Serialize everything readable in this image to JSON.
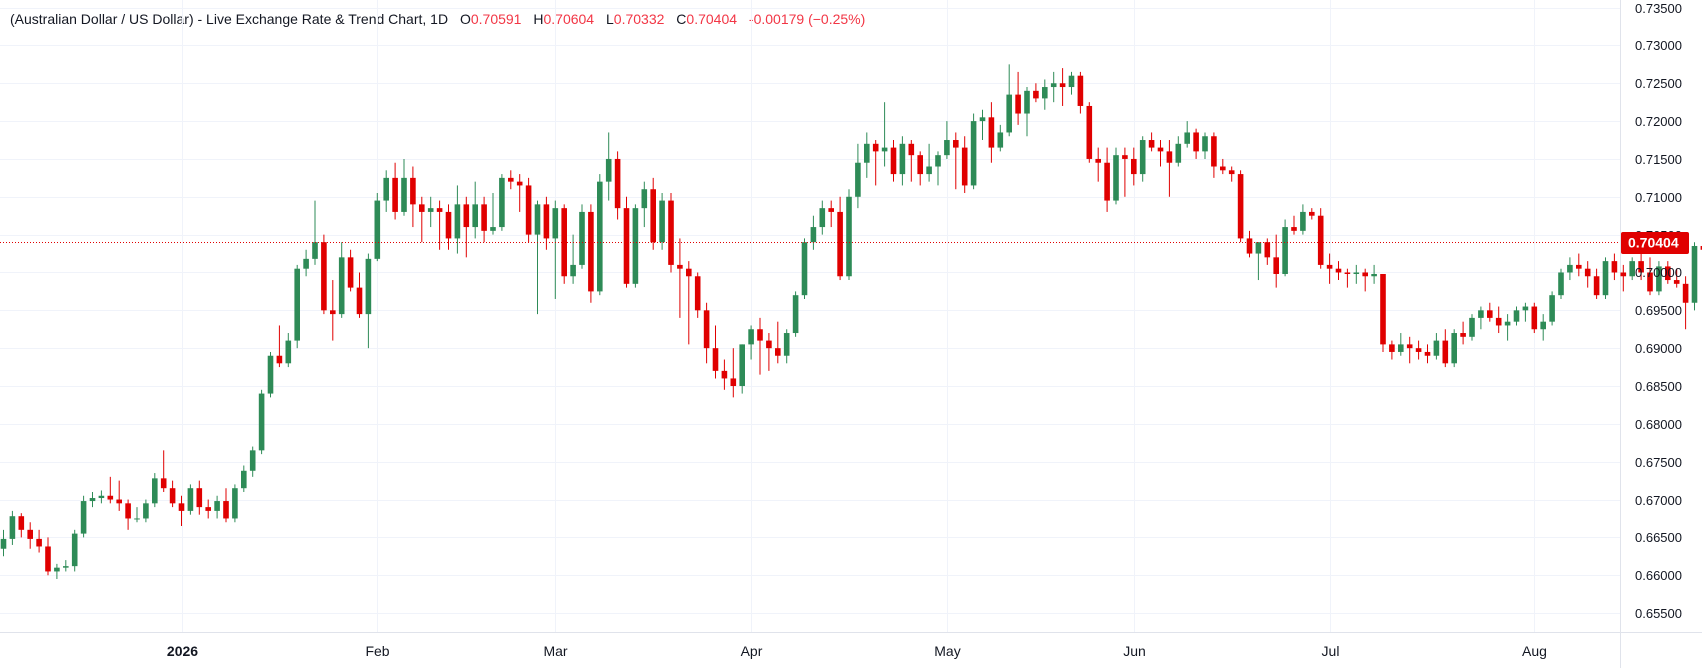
{
  "legend": {
    "symbol": "(Australian Dollar / US Dollar) - Live Exchange Rate & Trend Chart, 1D",
    "o_label": "O",
    "o_value": "0.70591",
    "h_label": "H",
    "h_value": "0.70604",
    "l_label": "L",
    "l_value": "0.70332",
    "c_label": "C",
    "c_value": "0.70404",
    "change": "-0.00179 (−0.25%)"
  },
  "colors": {
    "up": "#2e8b57",
    "down": "#e00000",
    "grid": "#f0f3fa",
    "last_line": "#e00000"
  },
  "chart_data": {
    "type": "candlestick",
    "ylim": [
      0.6525,
      0.736
    ],
    "yticks": [
      0.735,
      0.73,
      0.725,
      0.72,
      0.715,
      0.71,
      0.705,
      0.7,
      0.695,
      0.69,
      0.685,
      0.68,
      0.675,
      0.67,
      0.665,
      0.66,
      0.655
    ],
    "ytick_labels": [
      "0.73500",
      "0.73000",
      "0.72500",
      "0.72000",
      "0.71500",
      "0.71000",
      "0.70500",
      "0.70000",
      "0.69500",
      "0.69000",
      "0.68500",
      "0.68000",
      "0.67500",
      "0.67000",
      "0.66500",
      "0.66000",
      "0.65500"
    ],
    "xticks": [
      {
        "label": "2026",
        "index": 20,
        "bold": true
      },
      {
        "label": "Feb",
        "index": 42
      },
      {
        "label": "Mar",
        "index": 62
      },
      {
        "label": "Apr",
        "index": 84
      },
      {
        "label": "May",
        "index": 106
      },
      {
        "label": "Jun",
        "index": 127
      },
      {
        "label": "Jul",
        "index": 149
      },
      {
        "label": "Aug",
        "index": 172
      }
    ],
    "last_price": 0.70404,
    "last_price_label": "0.70404",
    "candles": [
      [
        0.6635,
        0.666,
        0.6625,
        0.6648
      ],
      [
        0.6648,
        0.6685,
        0.664,
        0.6678
      ],
      [
        0.6678,
        0.6682,
        0.665,
        0.666
      ],
      [
        0.666,
        0.667,
        0.6635,
        0.6648
      ],
      [
        0.6648,
        0.666,
        0.663,
        0.6638
      ],
      [
        0.6638,
        0.665,
        0.66,
        0.6605
      ],
      [
        0.6605,
        0.6615,
        0.6595,
        0.661
      ],
      [
        0.661,
        0.662,
        0.6605,
        0.6612
      ],
      [
        0.6612,
        0.666,
        0.6605,
        0.6655
      ],
      [
        0.6655,
        0.6705,
        0.665,
        0.6698
      ],
      [
        0.6698,
        0.671,
        0.669,
        0.6702
      ],
      [
        0.6702,
        0.6712,
        0.6695,
        0.6705
      ],
      [
        0.6705,
        0.673,
        0.6695,
        0.67
      ],
      [
        0.67,
        0.6725,
        0.6685,
        0.6695
      ],
      [
        0.6695,
        0.67,
        0.666,
        0.6675
      ],
      [
        0.6675,
        0.669,
        0.667,
        0.6675
      ],
      [
        0.6675,
        0.67,
        0.667,
        0.6695
      ],
      [
        0.6695,
        0.6735,
        0.669,
        0.6728
      ],
      [
        0.6728,
        0.6765,
        0.671,
        0.6715
      ],
      [
        0.6715,
        0.6725,
        0.669,
        0.6695
      ],
      [
        0.6695,
        0.6705,
        0.6665,
        0.6685
      ],
      [
        0.6685,
        0.672,
        0.668,
        0.6715
      ],
      [
        0.6715,
        0.6725,
        0.668,
        0.669
      ],
      [
        0.669,
        0.67,
        0.6675,
        0.6685
      ],
      [
        0.6685,
        0.6705,
        0.6675,
        0.6698
      ],
      [
        0.6698,
        0.6715,
        0.667,
        0.6675
      ],
      [
        0.6675,
        0.672,
        0.667,
        0.6715
      ],
      [
        0.6715,
        0.6745,
        0.671,
        0.6738
      ],
      [
        0.6738,
        0.677,
        0.673,
        0.6765
      ],
      [
        0.6765,
        0.6845,
        0.676,
        0.684
      ],
      [
        0.684,
        0.6895,
        0.6835,
        0.689
      ],
      [
        0.689,
        0.693,
        0.6875,
        0.688
      ],
      [
        0.688,
        0.692,
        0.6875,
        0.691
      ],
      [
        0.691,
        0.701,
        0.69,
        0.7005
      ],
      [
        0.7005,
        0.703,
        0.6995,
        0.7018
      ],
      [
        0.7018,
        0.7095,
        0.701,
        0.704
      ],
      [
        0.704,
        0.705,
        0.6945,
        0.695
      ],
      [
        0.695,
        0.699,
        0.691,
        0.6945
      ],
      [
        0.6945,
        0.704,
        0.694,
        0.702
      ],
      [
        0.702,
        0.703,
        0.6975,
        0.698
      ],
      [
        0.698,
        0.7,
        0.694,
        0.6945
      ],
      [
        0.6945,
        0.7025,
        0.69,
        0.7018
      ],
      [
        0.7018,
        0.7105,
        0.7015,
        0.7095
      ],
      [
        0.7095,
        0.7135,
        0.708,
        0.7125
      ],
      [
        0.7125,
        0.7145,
        0.707,
        0.708
      ],
      [
        0.708,
        0.715,
        0.7075,
        0.7125
      ],
      [
        0.7125,
        0.714,
        0.706,
        0.709
      ],
      [
        0.709,
        0.71,
        0.704,
        0.708
      ],
      [
        0.708,
        0.71,
        0.706,
        0.7085
      ],
      [
        0.7085,
        0.7095,
        0.703,
        0.708
      ],
      [
        0.708,
        0.709,
        0.703,
        0.7045
      ],
      [
        0.7045,
        0.7115,
        0.7025,
        0.709
      ],
      [
        0.709,
        0.71,
        0.702,
        0.706
      ],
      [
        0.706,
        0.712,
        0.7045,
        0.709
      ],
      [
        0.709,
        0.71,
        0.704,
        0.7055
      ],
      [
        0.7055,
        0.7105,
        0.705,
        0.706
      ],
      [
        0.706,
        0.713,
        0.7055,
        0.7125
      ],
      [
        0.7125,
        0.7135,
        0.711,
        0.712
      ],
      [
        0.712,
        0.713,
        0.708,
        0.7115
      ],
      [
        0.7115,
        0.7125,
        0.704,
        0.705
      ],
      [
        0.705,
        0.7095,
        0.6945,
        0.709
      ],
      [
        0.709,
        0.71,
        0.703,
        0.7045
      ],
      [
        0.7045,
        0.7095,
        0.6965,
        0.7085
      ],
      [
        0.7085,
        0.709,
        0.6985,
        0.6995
      ],
      [
        0.6995,
        0.705,
        0.6985,
        0.701
      ],
      [
        0.701,
        0.709,
        0.7005,
        0.708
      ],
      [
        0.708,
        0.709,
        0.696,
        0.6975
      ],
      [
        0.6975,
        0.713,
        0.697,
        0.712
      ],
      [
        0.712,
        0.7185,
        0.7095,
        0.715
      ],
      [
        0.715,
        0.716,
        0.707,
        0.7085
      ],
      [
        0.7085,
        0.71,
        0.698,
        0.6985
      ],
      [
        0.6985,
        0.709,
        0.698,
        0.7085
      ],
      [
        0.7085,
        0.712,
        0.706,
        0.711
      ],
      [
        0.711,
        0.7125,
        0.703,
        0.704
      ],
      [
        0.704,
        0.7105,
        0.703,
        0.7095
      ],
      [
        0.7095,
        0.7105,
        0.7,
        0.701
      ],
      [
        0.701,
        0.7045,
        0.694,
        0.7005
      ],
      [
        0.7005,
        0.7015,
        0.6905,
        0.6995
      ],
      [
        0.6995,
        0.7,
        0.694,
        0.695
      ],
      [
        0.695,
        0.696,
        0.688,
        0.69
      ],
      [
        0.69,
        0.693,
        0.686,
        0.687
      ],
      [
        0.687,
        0.6885,
        0.6845,
        0.686
      ],
      [
        0.686,
        0.69,
        0.6835,
        0.685
      ],
      [
        0.685,
        0.6905,
        0.684,
        0.6905
      ],
      [
        0.6905,
        0.693,
        0.6885,
        0.6925
      ],
      [
        0.6925,
        0.694,
        0.6865,
        0.691
      ],
      [
        0.691,
        0.692,
        0.687,
        0.69
      ],
      [
        0.69,
        0.6935,
        0.688,
        0.689
      ],
      [
        0.689,
        0.6925,
        0.688,
        0.692
      ],
      [
        0.692,
        0.6975,
        0.6915,
        0.697
      ],
      [
        0.697,
        0.7045,
        0.6965,
        0.704
      ],
      [
        0.704,
        0.7075,
        0.703,
        0.706
      ],
      [
        0.706,
        0.7095,
        0.705,
        0.7085
      ],
      [
        0.7085,
        0.7095,
        0.706,
        0.708
      ],
      [
        0.708,
        0.71,
        0.699,
        0.6995
      ],
      [
        0.6995,
        0.711,
        0.699,
        0.71
      ],
      [
        0.71,
        0.717,
        0.7085,
        0.7145
      ],
      [
        0.7145,
        0.7185,
        0.7125,
        0.717
      ],
      [
        0.717,
        0.7175,
        0.7115,
        0.716
      ],
      [
        0.716,
        0.7225,
        0.714,
        0.7165
      ],
      [
        0.7165,
        0.7175,
        0.712,
        0.713
      ],
      [
        0.713,
        0.718,
        0.7115,
        0.717
      ],
      [
        0.717,
        0.7175,
        0.712,
        0.7155
      ],
      [
        0.7155,
        0.716,
        0.7115,
        0.713
      ],
      [
        0.713,
        0.717,
        0.712,
        0.714
      ],
      [
        0.714,
        0.716,
        0.7115,
        0.7155
      ],
      [
        0.7155,
        0.72,
        0.715,
        0.7175
      ],
      [
        0.7175,
        0.7185,
        0.711,
        0.7165
      ],
      [
        0.7165,
        0.718,
        0.7105,
        0.7115
      ],
      [
        0.7115,
        0.721,
        0.711,
        0.72
      ],
      [
        0.72,
        0.7215,
        0.7175,
        0.7205
      ],
      [
        0.7205,
        0.7225,
        0.7145,
        0.7165
      ],
      [
        0.7165,
        0.7195,
        0.716,
        0.7185
      ],
      [
        0.7185,
        0.7275,
        0.718,
        0.7235
      ],
      [
        0.7235,
        0.7265,
        0.7195,
        0.721
      ],
      [
        0.721,
        0.7245,
        0.718,
        0.724
      ],
      [
        0.724,
        0.725,
        0.7225,
        0.723
      ],
      [
        0.723,
        0.7255,
        0.7215,
        0.7245
      ],
      [
        0.7245,
        0.7265,
        0.7225,
        0.725
      ],
      [
        0.725,
        0.727,
        0.722,
        0.7245
      ],
      [
        0.7245,
        0.7265,
        0.7235,
        0.726
      ],
      [
        0.726,
        0.7265,
        0.721,
        0.722
      ],
      [
        0.722,
        0.7225,
        0.7145,
        0.715
      ],
      [
        0.715,
        0.7165,
        0.712,
        0.7145
      ],
      [
        0.7145,
        0.7165,
        0.708,
        0.7095
      ],
      [
        0.7095,
        0.7165,
        0.709,
        0.7155
      ],
      [
        0.7155,
        0.7165,
        0.71,
        0.715
      ],
      [
        0.715,
        0.7165,
        0.7115,
        0.713
      ],
      [
        0.713,
        0.718,
        0.712,
        0.7175
      ],
      [
        0.7175,
        0.7185,
        0.716,
        0.7165
      ],
      [
        0.7165,
        0.7175,
        0.714,
        0.716
      ],
      [
        0.716,
        0.7175,
        0.71,
        0.7145
      ],
      [
        0.7145,
        0.718,
        0.714,
        0.717
      ],
      [
        0.717,
        0.72,
        0.7165,
        0.7185
      ],
      [
        0.7185,
        0.719,
        0.715,
        0.716
      ],
      [
        0.716,
        0.7185,
        0.715,
        0.718
      ],
      [
        0.718,
        0.7185,
        0.7125,
        0.714
      ],
      [
        0.714,
        0.715,
        0.713,
        0.7135
      ],
      [
        0.7135,
        0.714,
        0.712,
        0.713
      ],
      [
        0.713,
        0.7135,
        0.704,
        0.7045
      ],
      [
        0.7045,
        0.7055,
        0.702,
        0.7025
      ],
      [
        0.7025,
        0.704,
        0.699,
        0.704
      ],
      [
        0.704,
        0.7045,
        0.701,
        0.702
      ],
      [
        0.702,
        0.705,
        0.698,
        0.6998
      ],
      [
        0.6998,
        0.707,
        0.6995,
        0.706
      ],
      [
        0.706,
        0.7075,
        0.705,
        0.7055
      ],
      [
        0.7055,
        0.709,
        0.705,
        0.708
      ],
      [
        0.708,
        0.7085,
        0.707,
        0.7075
      ],
      [
        0.7075,
        0.7085,
        0.7005,
        0.701
      ],
      [
        0.701,
        0.7025,
        0.6985,
        0.7005
      ],
      [
        0.7005,
        0.7015,
        0.699,
        0.7
      ],
      [
        0.7,
        0.7005,
        0.698,
        0.6998
      ],
      [
        0.6998,
        0.701,
        0.6985,
        0.7
      ],
      [
        0.7,
        0.7005,
        0.6975,
        0.6995
      ],
      [
        0.6995,
        0.701,
        0.6985,
        0.6998
      ],
      [
        0.6998,
        0.6998,
        0.6895,
        0.6905
      ],
      [
        0.6905,
        0.691,
        0.6885,
        0.6895
      ],
      [
        0.6895,
        0.692,
        0.689,
        0.6905
      ],
      [
        0.6905,
        0.6915,
        0.688,
        0.69
      ],
      [
        0.69,
        0.691,
        0.6885,
        0.6895
      ],
      [
        0.6895,
        0.6905,
        0.688,
        0.689
      ],
      [
        0.689,
        0.692,
        0.6885,
        0.691
      ],
      [
        0.691,
        0.6925,
        0.6875,
        0.688
      ],
      [
        0.688,
        0.6925,
        0.6875,
        0.692
      ],
      [
        0.692,
        0.6935,
        0.6905,
        0.6915
      ],
      [
        0.6915,
        0.6945,
        0.691,
        0.694
      ],
      [
        0.694,
        0.6955,
        0.6925,
        0.695
      ],
      [
        0.695,
        0.696,
        0.6935,
        0.694
      ],
      [
        0.694,
        0.6955,
        0.692,
        0.693
      ],
      [
        0.693,
        0.6945,
        0.691,
        0.6935
      ],
      [
        0.6935,
        0.6955,
        0.693,
        0.695
      ],
      [
        0.695,
        0.696,
        0.6935,
        0.6955
      ],
      [
        0.6955,
        0.696,
        0.692,
        0.6925
      ],
      [
        0.6925,
        0.6945,
        0.691,
        0.6935
      ],
      [
        0.6935,
        0.6975,
        0.693,
        0.697
      ],
      [
        0.697,
        0.7005,
        0.6965,
        0.7
      ],
      [
        0.7,
        0.702,
        0.699,
        0.701
      ],
      [
        0.701,
        0.7025,
        0.6995,
        0.7005
      ],
      [
        0.7005,
        0.7015,
        0.698,
        0.6995
      ],
      [
        0.6995,
        0.7005,
        0.6965,
        0.697
      ],
      [
        0.697,
        0.702,
        0.6965,
        0.7015
      ],
      [
        0.7015,
        0.7025,
        0.699,
        0.7
      ],
      [
        0.7,
        0.701,
        0.6975,
        0.6995
      ],
      [
        0.6995,
        0.702,
        0.699,
        0.7015
      ],
      [
        0.7015,
        0.7025,
        0.699,
        0.7
      ],
      [
        0.7,
        0.702,
        0.697,
        0.6975
      ],
      [
        0.6975,
        0.7015,
        0.697,
        0.7008
      ],
      [
        0.7008,
        0.7015,
        0.6985,
        0.699
      ],
      [
        0.699,
        0.7005,
        0.698,
        0.6985
      ],
      [
        0.6985,
        0.6995,
        0.6925,
        0.696
      ],
      [
        0.696,
        0.704,
        0.695,
        0.7035
      ],
      [
        0.7035,
        0.705,
        0.702,
        0.703
      ],
      [
        0.703,
        0.7045,
        0.6985,
        0.7
      ],
      [
        0.7,
        0.705,
        0.6995,
        0.7045
      ],
      [
        0.7045,
        0.7065,
        0.704,
        0.7058
      ],
      [
        0.7058,
        0.706,
        0.7033,
        0.704
      ]
    ]
  }
}
